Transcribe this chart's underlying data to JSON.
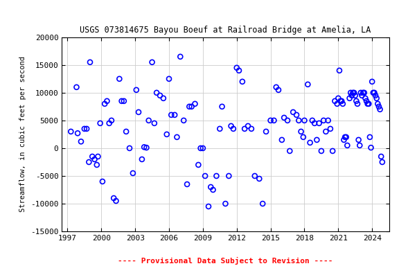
{
  "title": "USGS 073814675 Bayou Boeuf at Railroad Bridge at Amelia, LA",
  "ylabel": "Streamflow, in cubic feet per second",
  "xlabel_note": "---- Provisional Data Subject to Revision ----",
  "xlim": [
    1996.5,
    2025.5
  ],
  "ylim": [
    -15000,
    20000
  ],
  "yticks": [
    -15000,
    -10000,
    -5000,
    0,
    5000,
    10000,
    15000,
    20000
  ],
  "xticks": [
    1997,
    2000,
    2003,
    2006,
    2009,
    2012,
    2015,
    2018,
    2021,
    2024
  ],
  "marker_color": "blue",
  "marker_face": "none",
  "marker_size": 5,
  "marker_lw": 1.2,
  "background_color": "white",
  "grid_color": "#cccccc",
  "x": [
    1997.3,
    1997.8,
    1997.9,
    1998.2,
    1998.5,
    1998.7,
    1998.9,
    1999.0,
    1999.2,
    1999.4,
    1999.6,
    1999.7,
    1999.9,
    2000.1,
    2000.3,
    2000.5,
    2000.7,
    2000.9,
    2001.1,
    2001.3,
    2001.6,
    2001.8,
    2002.0,
    2002.2,
    2002.5,
    2002.8,
    2003.1,
    2003.3,
    2003.6,
    2003.8,
    2004.0,
    2004.2,
    2004.5,
    2004.7,
    2004.9,
    2005.2,
    2005.5,
    2005.8,
    2006.0,
    2006.2,
    2006.5,
    2006.7,
    2007.0,
    2007.3,
    2007.6,
    2007.8,
    2008.0,
    2008.3,
    2008.6,
    2008.8,
    2009.0,
    2009.2,
    2009.5,
    2009.7,
    2009.9,
    2010.2,
    2010.5,
    2010.7,
    2011.0,
    2011.3,
    2011.5,
    2011.7,
    2012.0,
    2012.2,
    2012.5,
    2012.7,
    2013.0,
    2013.3,
    2013.6,
    2014.0,
    2014.3,
    2014.6,
    2015.0,
    2015.3,
    2015.5,
    2015.7,
    2016.0,
    2016.2,
    2016.5,
    2016.7,
    2017.0,
    2017.3,
    2017.5,
    2017.7,
    2017.9,
    2018.0,
    2018.3,
    2018.5,
    2018.7,
    2018.9,
    2019.1,
    2019.3,
    2019.5,
    2019.7,
    2019.9,
    2020.1,
    2020.3,
    2020.5,
    2020.7,
    2020.9,
    2021.0,
    2021.1,
    2021.2,
    2021.3,
    2021.4,
    2021.5,
    2021.6,
    2021.7,
    2021.8,
    2022.0,
    2022.1,
    2022.2,
    2022.3,
    2022.4,
    2022.5,
    2022.6,
    2022.7,
    2022.8,
    2022.9,
    2023.0,
    2023.1,
    2023.2,
    2023.3,
    2023.4,
    2023.5,
    2023.6,
    2023.7,
    2023.8,
    2023.9,
    2024.0,
    2024.1,
    2024.2,
    2024.3,
    2024.4,
    2024.5,
    2024.6,
    2024.7,
    2024.8,
    2024.9
  ],
  "y": [
    3000,
    11000,
    2700,
    1200,
    3500,
    3500,
    -2500,
    15500,
    -1500,
    -2000,
    -3000,
    -1500,
    4500,
    -6000,
    8000,
    8500,
    4500,
    5000,
    -9000,
    -9500,
    12500,
    8500,
    8500,
    3000,
    0,
    -4500,
    10500,
    6500,
    -2000,
    200,
    100,
    5000,
    15500,
    4500,
    10000,
    9500,
    9000,
    2500,
    12500,
    6000,
    6000,
    2000,
    16500,
    5000,
    -6500,
    7500,
    7500,
    8000,
    -3000,
    0,
    0,
    -5000,
    -10500,
    -7000,
    -7500,
    -5000,
    3500,
    7500,
    -10000,
    -5000,
    4000,
    3500,
    14500,
    14000,
    12000,
    3500,
    4000,
    3500,
    -5000,
    -5500,
    -10000,
    3000,
    5000,
    5000,
    11000,
    10500,
    1500,
    5500,
    5000,
    -500,
    6500,
    6000,
    5000,
    3000,
    2000,
    5000,
    11500,
    1000,
    5000,
    4500,
    1500,
    4500,
    -500,
    5000,
    3000,
    5000,
    3500,
    -500,
    8500,
    8000,
    9000,
    14000,
    8500,
    8500,
    8000,
    1500,
    2000,
    2000,
    500,
    9000,
    10000,
    9500,
    10000,
    10000,
    9500,
    8500,
    8000,
    1500,
    500,
    10000,
    9500,
    10000,
    10000,
    9000,
    8500,
    8000,
    8000,
    2000,
    100,
    12000,
    10000,
    10000,
    9500,
    9000,
    8000,
    7500,
    7000,
    -1500,
    -2500
  ]
}
